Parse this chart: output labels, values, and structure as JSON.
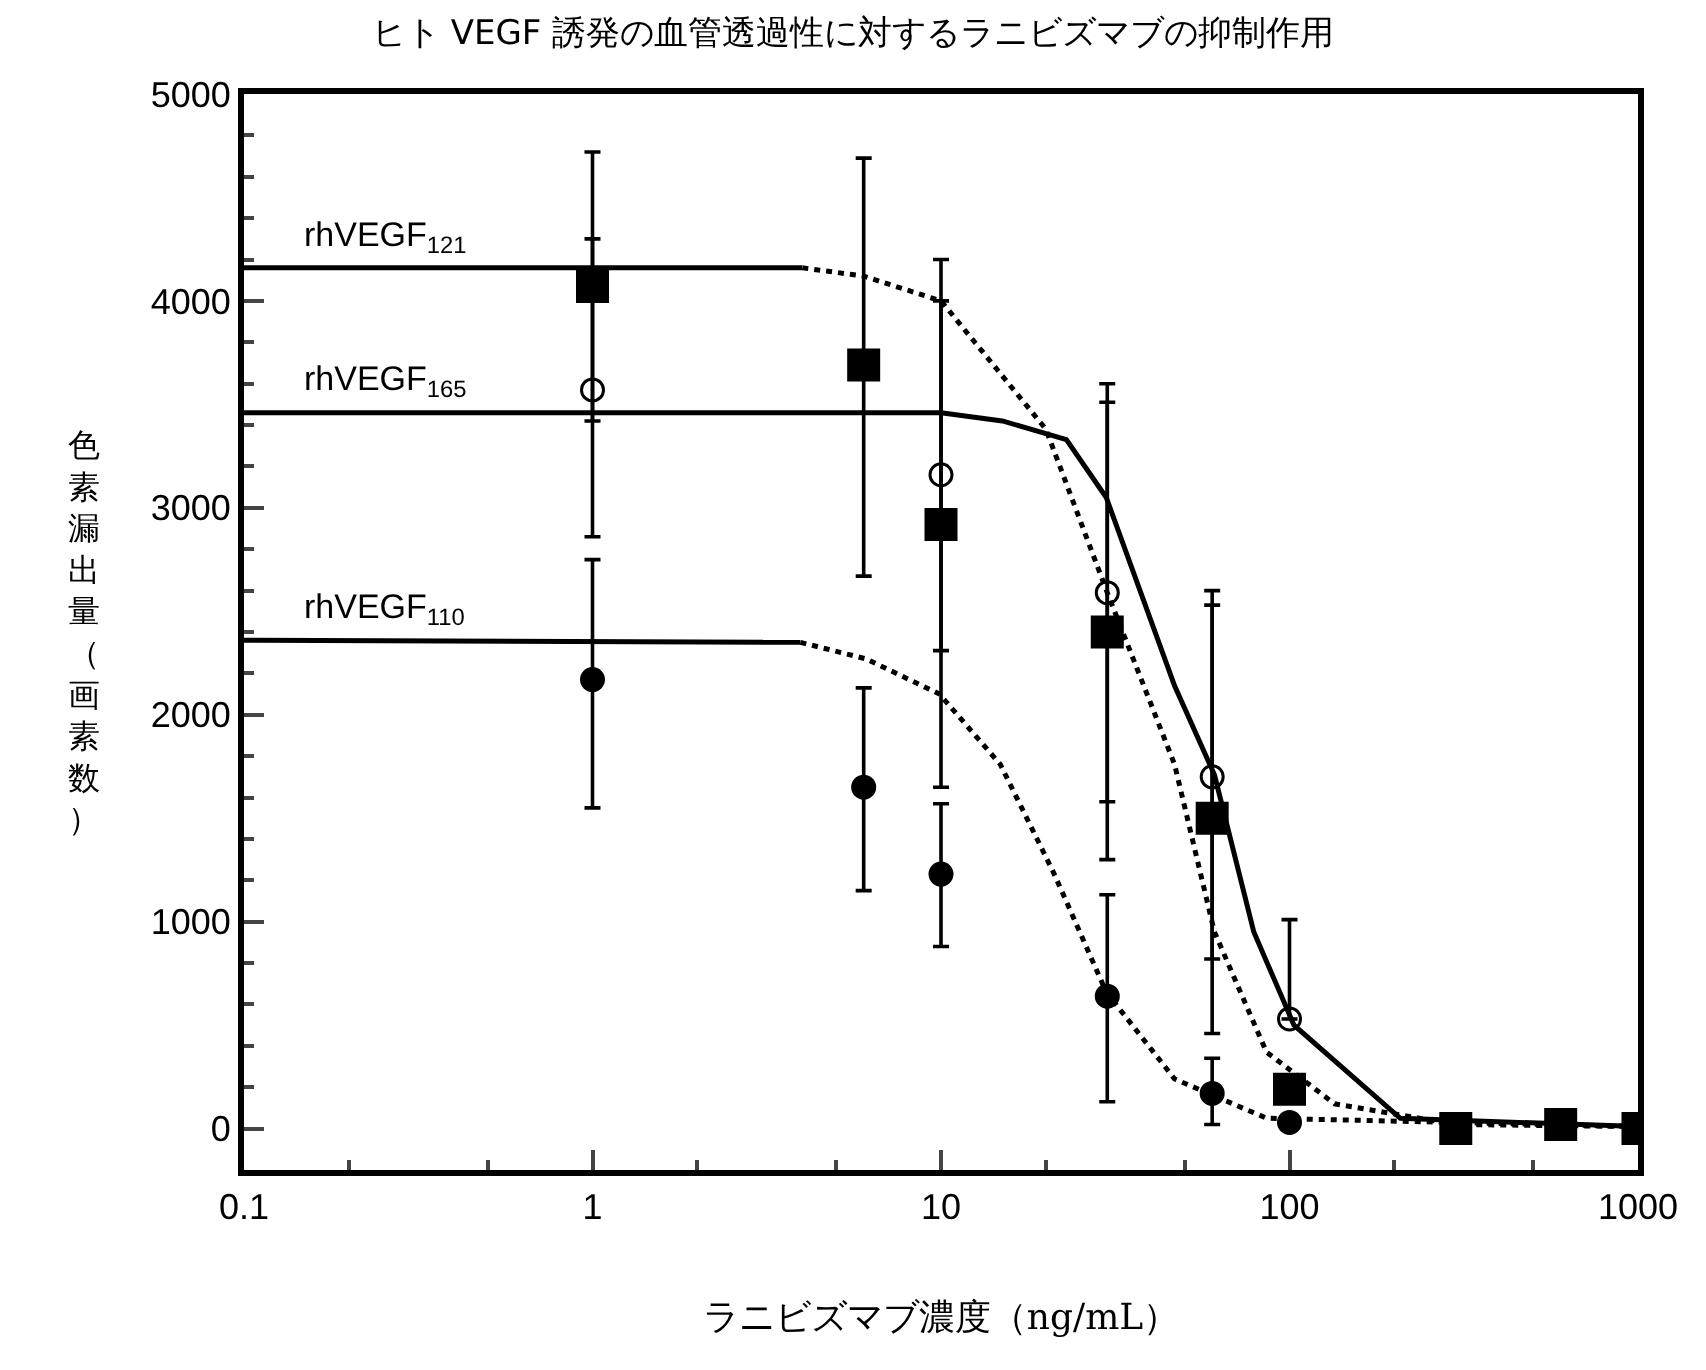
{
  "chart_data": {
    "type": "scatter",
    "title": "ヒト VEGF 誘発の血管透過性に対するラニビズマブの抑制作用",
    "xlabel": "ラニビズマブ濃度（ng/mL）",
    "ylabel": "色素漏出量（画素数）",
    "log": "x",
    "xlim": [
      0.1,
      1000
    ],
    "xticks": [
      0.1,
      1,
      10,
      100,
      1000
    ],
    "ylim": [
      -200,
      5000
    ],
    "yticks": [
      0,
      1000,
      2000,
      3000,
      4000,
      5000
    ],
    "grid": false,
    "series": [
      {
        "type": "line",
        "name": "rhVEGF$_{121}$",
        "color": "#000000",
        "line_style": "solid",
        "marker": "none",
        "x": [
          0.1,
          4
        ],
        "values": [
          4160,
          4160
        ]
      },
      {
        "type": "line",
        "color": "#000000",
        "line_style": "dotted",
        "marker": "none",
        "x": [
          4,
          6,
          10,
          20,
          30,
          46.8,
          60.9,
          85.9,
          134.6,
          300,
          1000
        ],
        "values": [
          4160,
          4120,
          4000,
          3380,
          2590,
          1760,
          950,
          370,
          120,
          20,
          10
        ]
      },
      {
        "type": "line",
        "name": "rhVEGF$_{165}$",
        "color": "#000000",
        "line_style": "solid",
        "marker": "none",
        "x": [
          0.1,
          10,
          15,
          22.9,
          29.8,
          46.8,
          60.9,
          79,
          103,
          208,
          1000
        ],
        "values": [
          3460,
          3460,
          3420,
          3330,
          3050,
          2140,
          1710,
          950,
          500,
          50,
          10
        ]
      },
      {
        "type": "line",
        "name": "rhVEGF$_{110}$",
        "color": "#000000",
        "line_style": "solid",
        "marker": "none",
        "x": [
          0.1,
          3.95
        ],
        "values": [
          2360,
          2350
        ]
      },
      {
        "type": "line",
        "color": "#000000",
        "line_style": "dotted",
        "marker": "none",
        "x": [
          3.95,
          6.1,
          9.9,
          14.8,
          21,
          29.8,
          46.8,
          86,
          1000
        ],
        "values": [
          2350,
          2270,
          2100,
          1760,
          1240,
          660,
          240,
          50,
          10
        ]
      },
      {
        "color": "#000000",
        "marker": "square",
        "x": [
          1,
          6,
          10,
          30,
          60,
          100,
          300,
          600,
          1000
        ],
        "values": [
          4070,
          3690,
          2920,
          2400,
          1500,
          190,
          0,
          20,
          0
        ],
        "errors": [
          [
            3420,
            4720
          ],
          [
            2670,
            4690
          ],
          [
            1650,
            4200
          ],
          [
            1300,
            3510
          ],
          [
            460,
            2530
          ],
          null,
          null,
          null,
          null
        ]
      },
      {
        "color": "#000000",
        "marker": "circle-open",
        "x": [
          1,
          10,
          30,
          60,
          100
        ],
        "values": [
          3570,
          3160,
          2590,
          1700,
          530
        ],
        "errors": [
          [
            2860,
            4300
          ],
          [
            2310,
            4000
          ],
          [
            1580,
            3600
          ],
          [
            820,
            2600
          ],
          [
            530,
            1010
          ]
        ]
      },
      {
        "color": "#000000",
        "marker": "circle",
        "x": [
          1,
          6,
          10,
          30,
          60,
          100
        ],
        "values": [
          2170,
          1650,
          1230,
          640,
          170,
          30
        ],
        "errors": [
          [
            1550,
            2750
          ],
          [
            1150,
            2130
          ],
          [
            880,
            1570
          ],
          [
            130,
            1130
          ],
          [
            20,
            340
          ],
          null
        ]
      }
    ]
  }
}
